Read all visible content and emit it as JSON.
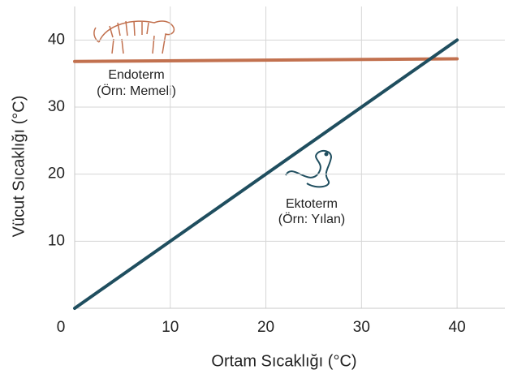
{
  "chart_data": {
    "type": "line",
    "x_label": "Ortam Sıcaklığı (°C)",
    "y_label": "Vücut Sıcaklığı (°C)",
    "x": [
      0,
      40
    ],
    "series": [
      {
        "name": "Endoterm",
        "color": "#c2714f",
        "values": [
          36.8,
          37.2
        ]
      },
      {
        "name": "Ektoterm",
        "color": "#1f4e5f",
        "values": [
          0,
          40
        ]
      }
    ],
    "annotations": [
      {
        "label": "Endoterm",
        "note": "(Örn: Memeli)"
      },
      {
        "label": "Ektoterm",
        "note": "(Örn: Yılan)"
      }
    ],
    "xlim": [
      0,
      45
    ],
    "ylim": [
      0,
      45
    ],
    "xticks": [
      0,
      10,
      20,
      30,
      40
    ],
    "yticks": [
      10,
      20,
      30,
      40
    ],
    "grid": true
  }
}
